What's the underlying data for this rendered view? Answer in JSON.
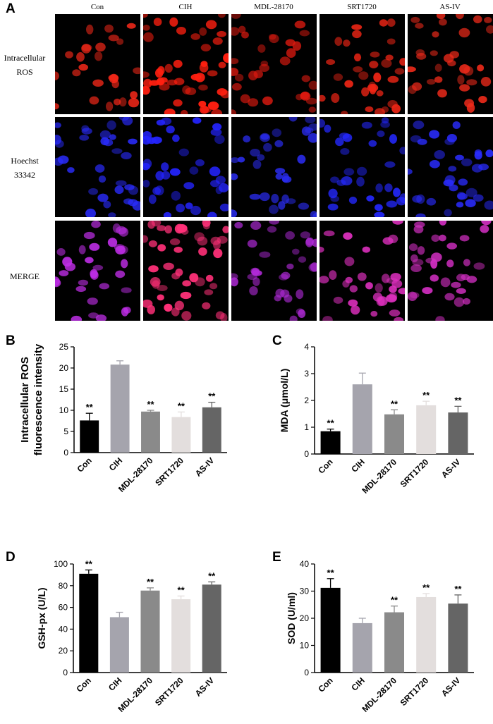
{
  "figure": {
    "panel_labels": [
      "A",
      "B",
      "C",
      "D",
      "E"
    ],
    "column_labels": [
      "Con",
      "CIH",
      "MDL-28170",
      "SRT1720",
      "AS-IV"
    ],
    "row_labels": [
      [
        "Intracellular",
        "ROS"
      ],
      [
        "Hoechst",
        "33342"
      ],
      [
        "MERGE"
      ]
    ],
    "image_rows": [
      {
        "stain": "ROS",
        "colors": [
          "#ff2a1a",
          "#ff1f10",
          "#e01a10",
          "#f02515",
          "#ee2a1a"
        ],
        "density": [
          0.35,
          0.95,
          0.55,
          0.6,
          0.55
        ],
        "brightness": [
          0.75,
          1.0,
          0.7,
          0.85,
          0.85
        ]
      },
      {
        "stain": "Hoechst",
        "colors": [
          "#2a2cff",
          "#2424ff",
          "#2a2cf0",
          "#2428ff",
          "#2a2cff"
        ],
        "density": [
          0.55,
          0.7,
          0.6,
          0.55,
          0.6
        ],
        "brightness": [
          0.85,
          0.9,
          0.8,
          0.85,
          0.85
        ]
      },
      {
        "stain": "Merge",
        "colors": [
          "#c02ee8",
          "#ff3078",
          "#b02ad8",
          "#e030c0",
          "#d02ec0"
        ],
        "density": [
          0.55,
          0.95,
          0.6,
          0.6,
          0.6
        ],
        "brightness": [
          0.85,
          1.0,
          0.8,
          0.9,
          0.9
        ]
      }
    ]
  },
  "colors": {
    "bars": [
      "#000000",
      "#a5a4ad",
      "#8a8a8a",
      "#e3dedd",
      "#656565"
    ],
    "axis": "#000000"
  },
  "significance": "**",
  "chart_data": [
    {
      "panel": "B",
      "type": "bar",
      "categories": [
        "Con",
        "CIH",
        "MDL-28170",
        "SRT1720",
        "AS-IV"
      ],
      "values": [
        7.6,
        20.8,
        9.7,
        8.4,
        10.7
      ],
      "errors": [
        1.7,
        0.9,
        0.3,
        1.2,
        1.2
      ],
      "sig": [
        "**",
        "",
        "**",
        "**",
        "**"
      ],
      "ylabel": [
        "Intracellular ROS",
        "fluorescence intensity"
      ],
      "ylim": [
        0,
        25
      ],
      "yticks": [
        0,
        5,
        10,
        15,
        20,
        25
      ]
    },
    {
      "panel": "C",
      "type": "bar",
      "categories": [
        "Con",
        "CIH",
        "MDL-28170",
        "SRT1720",
        "AS-IV"
      ],
      "values": [
        0.85,
        2.6,
        1.48,
        1.82,
        1.55
      ],
      "errors": [
        0.08,
        0.42,
        0.17,
        0.15,
        0.23
      ],
      "sig": [
        "**",
        "",
        "**",
        "**",
        "**"
      ],
      "ylabel": [
        "MDA (μmol/L)"
      ],
      "ylim": [
        0,
        4
      ],
      "yticks": [
        0,
        1,
        2,
        3,
        4
      ]
    },
    {
      "panel": "D",
      "type": "bar",
      "categories": [
        "Con",
        "CIH",
        "MDL-28170",
        "SRT1720",
        "AS-IV"
      ],
      "values": [
        91,
        51,
        75.5,
        67.5,
        81
      ],
      "errors": [
        3.5,
        4.5,
        2.5,
        3,
        2.5
      ],
      "sig": [
        "**",
        "",
        "**",
        "**",
        "**"
      ],
      "ylabel": [
        "GSH-px (U/L)"
      ],
      "ylim": [
        0,
        100
      ],
      "yticks": [
        0,
        20,
        40,
        60,
        80,
        100
      ]
    },
    {
      "panel": "E",
      "type": "bar",
      "categories": [
        "Con",
        "CIH",
        "MDL-28170",
        "SRT1720",
        "AS-IV"
      ],
      "values": [
        31.2,
        18.2,
        22.2,
        27.8,
        25.4
      ],
      "errors": [
        3.4,
        1.8,
        2.3,
        1.3,
        3.2
      ],
      "sig": [
        "**",
        "",
        "**",
        "**",
        "**"
      ],
      "ylabel": [
        "SOD (U/ml)"
      ],
      "ylim": [
        0,
        40
      ],
      "yticks": [
        0,
        10,
        20,
        30,
        40
      ]
    }
  ]
}
